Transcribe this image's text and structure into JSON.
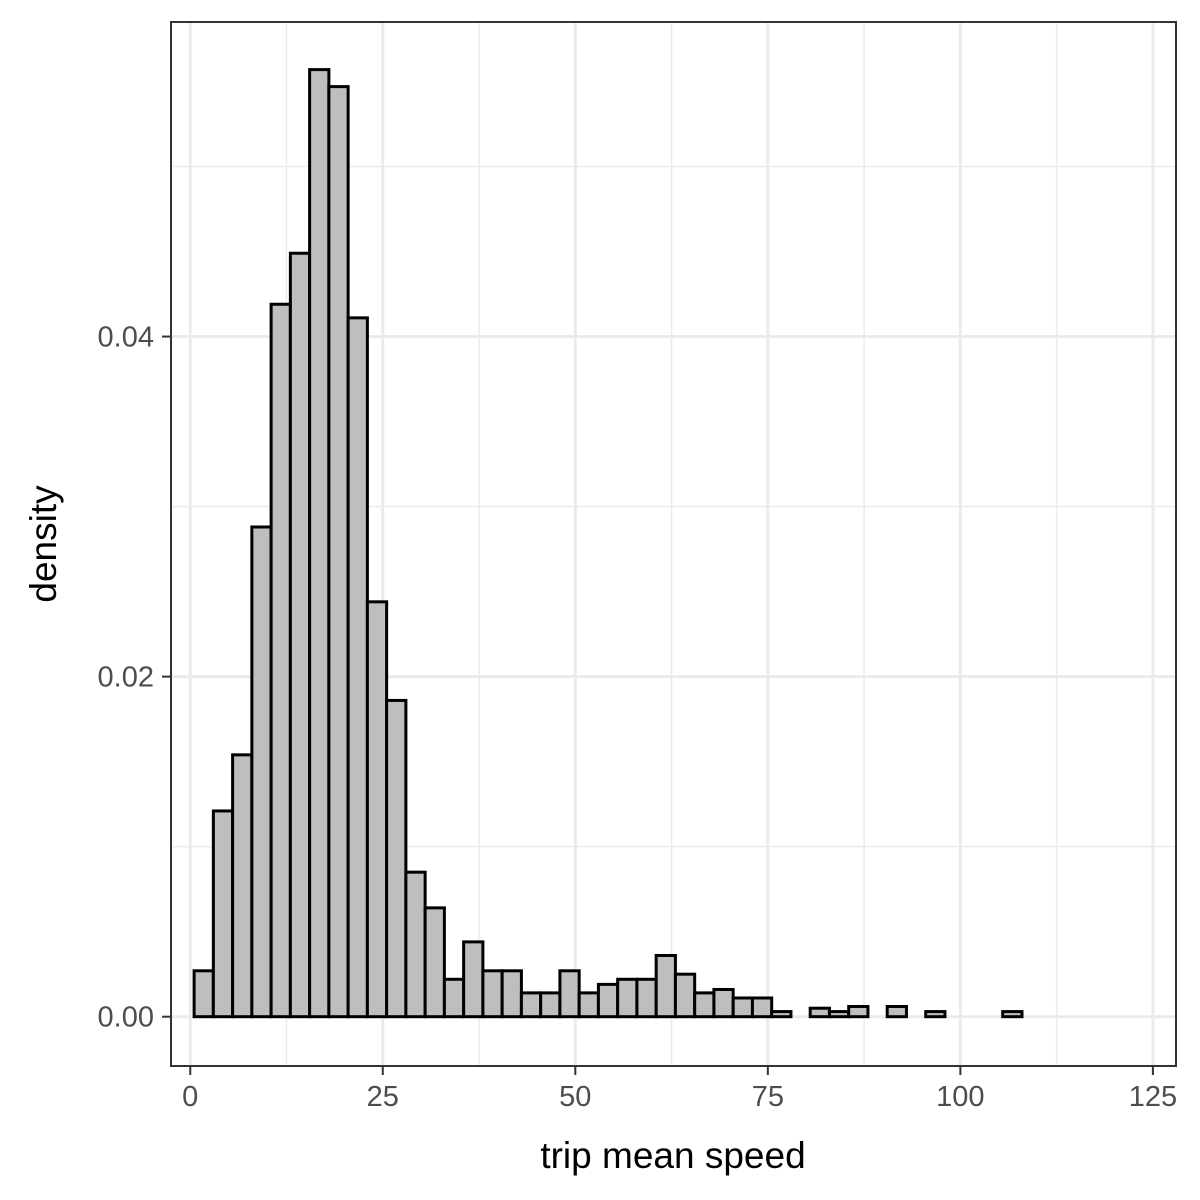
{
  "chart_data": {
    "type": "bar",
    "xlabel": "trip mean speed",
    "ylabel": "density",
    "xlim": [
      -2.5,
      128
    ],
    "ylim": [
      -0.0029,
      0.0585
    ],
    "x_ticks": [
      0,
      25,
      50,
      75,
      100,
      125
    ],
    "x_tick_labels": [
      "0",
      "25",
      "50",
      "75",
      "100",
      "125"
    ],
    "y_ticks": [
      0.0,
      0.02,
      0.04
    ],
    "y_tick_labels": [
      "0.00",
      "0.02",
      "0.04"
    ],
    "x_minor_ticks": [
      12.5,
      37.5,
      62.5,
      87.5,
      112.5
    ],
    "y_minor_ticks": [
      0.01,
      0.03,
      0.05
    ],
    "grid": true,
    "bin_width": 2.5,
    "bin_start": 0.5,
    "bar_fill": "#bebebe",
    "bar_stroke": "#000000",
    "densities": [
      0.0027,
      0.0121,
      0.0154,
      0.0288,
      0.0419,
      0.0449,
      0.0557,
      0.0547,
      0.0411,
      0.0244,
      0.0186,
      0.0085,
      0.0064,
      0.0022,
      0.0044,
      0.0027,
      0.0027,
      0.0014,
      0.0014,
      0.0027,
      0.0014,
      0.0019,
      0.0022,
      0.0022,
      0.0036,
      0.0025,
      0.0014,
      0.0016,
      0.0011,
      0.0011,
      0.0003,
      0.0,
      0.0005,
      0.0003,
      0.0006,
      0.0,
      0.0006,
      0.0,
      0.0003,
      0.0,
      0.0,
      0.0,
      0.0003,
      0.0,
      0.0,
      0.0,
      0.0,
      0.0,
      0.0
    ]
  }
}
